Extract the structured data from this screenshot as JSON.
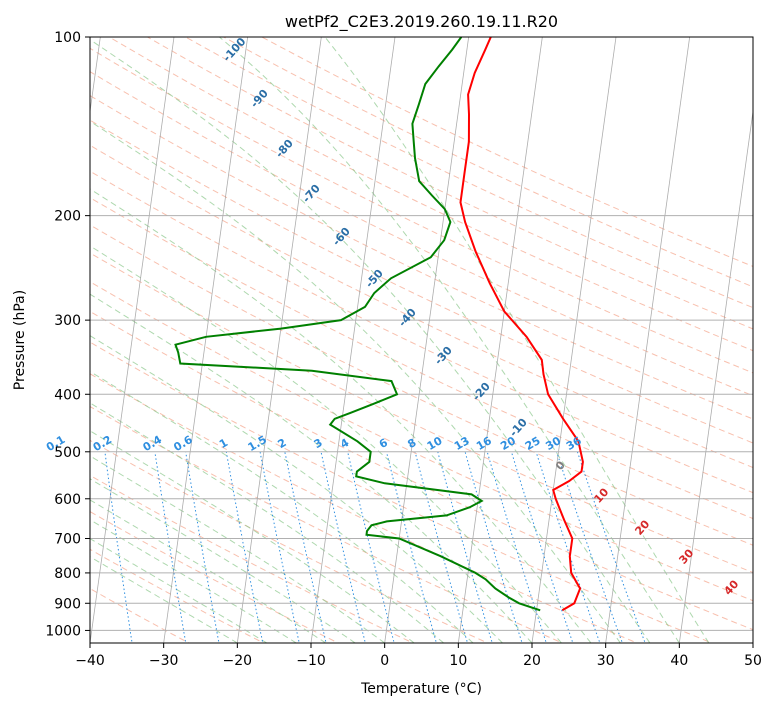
{
  "chart_data": {
    "type": "line",
    "title": "wetPf2_C2E3.2019.260.19.11.R20",
    "xlabel": "Temperature (°C)",
    "ylabel": "Pressure (hPa)",
    "xlim": [
      -40,
      50
    ],
    "ylim": [
      1050,
      100
    ],
    "y_scale": "log",
    "grid": true,
    "x_ticks": [
      -40,
      -30,
      -20,
      -10,
      0,
      10,
      20,
      30,
      40,
      50
    ],
    "y_ticks": [
      100,
      200,
      300,
      400,
      500,
      600,
      700,
      800,
      900,
      1000
    ],
    "series": [
      {
        "color": "#ff0000",
        "points": [
          [
            23.5,
            925
          ],
          [
            25.0,
            900
          ],
          [
            25.5,
            850
          ],
          [
            24.0,
            800
          ],
          [
            23.5,
            750
          ],
          [
            23.5,
            700
          ],
          [
            22.0,
            650
          ],
          [
            20.5,
            600
          ],
          [
            20.0,
            580
          ],
          [
            22.0,
            560
          ],
          [
            23.5,
            540
          ],
          [
            23.5,
            520
          ],
          [
            22.5,
            480
          ],
          [
            20.0,
            440
          ],
          [
            17.5,
            400
          ],
          [
            16.5,
            370
          ],
          [
            16.0,
            350
          ],
          [
            13.5,
            320
          ],
          [
            10.0,
            290
          ],
          [
            7.5,
            260
          ],
          [
            5.0,
            230
          ],
          [
            3.0,
            205
          ],
          [
            2.0,
            190
          ],
          [
            2.0,
            170
          ],
          [
            2.0,
            150
          ],
          [
            1.5,
            135
          ],
          [
            1.0,
            125
          ],
          [
            1.5,
            115
          ],
          [
            2.5,
            105
          ],
          [
            3.0,
            100
          ]
        ]
      },
      {
        "color": "#008000",
        "points": [
          [
            20.5,
            925
          ],
          [
            17.5,
            900
          ],
          [
            16.0,
            880
          ],
          [
            14.0,
            850
          ],
          [
            12.5,
            820
          ],
          [
            11.0,
            800
          ],
          [
            6.0,
            750
          ],
          [
            0.0,
            700
          ],
          [
            -4.5,
            690
          ],
          [
            -4.5,
            680
          ],
          [
            -4.0,
            665
          ],
          [
            -2.0,
            655
          ],
          [
            6.0,
            640
          ],
          [
            9.0,
            620
          ],
          [
            10.5,
            605
          ],
          [
            9.0,
            590
          ],
          [
            -3.0,
            565
          ],
          [
            -7.0,
            550
          ],
          [
            -7.0,
            540
          ],
          [
            -5.5,
            520
          ],
          [
            -5.5,
            500
          ],
          [
            -7.5,
            480
          ],
          [
            -11.5,
            450
          ],
          [
            -11.0,
            440
          ],
          [
            -9.0,
            430
          ],
          [
            -6.0,
            415
          ],
          [
            -3.0,
            400
          ],
          [
            -4.0,
            380
          ],
          [
            -15.0,
            365
          ],
          [
            -33.0,
            355
          ],
          [
            -33.5,
            340
          ],
          [
            -34.0,
            330
          ],
          [
            -30.0,
            320
          ],
          [
            -20.0,
            310
          ],
          [
            -12.0,
            300
          ],
          [
            -9.0,
            285
          ],
          [
            -8.0,
            270
          ],
          [
            -6.0,
            255
          ],
          [
            -1.0,
            235
          ],
          [
            0.5,
            220
          ],
          [
            1.0,
            205
          ],
          [
            0.0,
            195
          ],
          [
            -2.0,
            185
          ],
          [
            -4.0,
            175
          ],
          [
            -5.0,
            160
          ],
          [
            -5.5,
            150
          ],
          [
            -6.0,
            140
          ],
          [
            -5.5,
            130
          ],
          [
            -5.0,
            120
          ],
          [
            -3.5,
            112
          ],
          [
            -2.0,
            105
          ],
          [
            -1.0,
            100
          ]
        ]
      }
    ],
    "mixing_ratio_labels": [
      "0.1",
      "0.2",
      "0.4",
      "0.6",
      "1",
      "1.5",
      "2",
      "3",
      "4",
      "6",
      "8",
      "10",
      "13",
      "16",
      "20",
      "25",
      "30",
      "36"
    ],
    "isotherm_labels_dry": [
      "-100",
      "-90",
      "-80",
      "-70",
      "-60",
      "-50",
      "-40",
      "-30",
      "-20",
      "-10"
    ],
    "isotherm_zero_label": "0",
    "isotherm_labels_warm": [
      "10",
      "20",
      "30",
      "40"
    ]
  },
  "colors": {
    "temperature": "#ff0000",
    "dewpoint": "#008000",
    "isotherm_cold": "#2a6ea6",
    "isotherm_zero": "#808080",
    "isotherm_warm": "#d62728",
    "mixing_ratio": "#2f8fe0",
    "dry_adiabat": "#f5a58c",
    "moist_adiabat": "#8cc88c",
    "grid": "#b0b0b0"
  }
}
